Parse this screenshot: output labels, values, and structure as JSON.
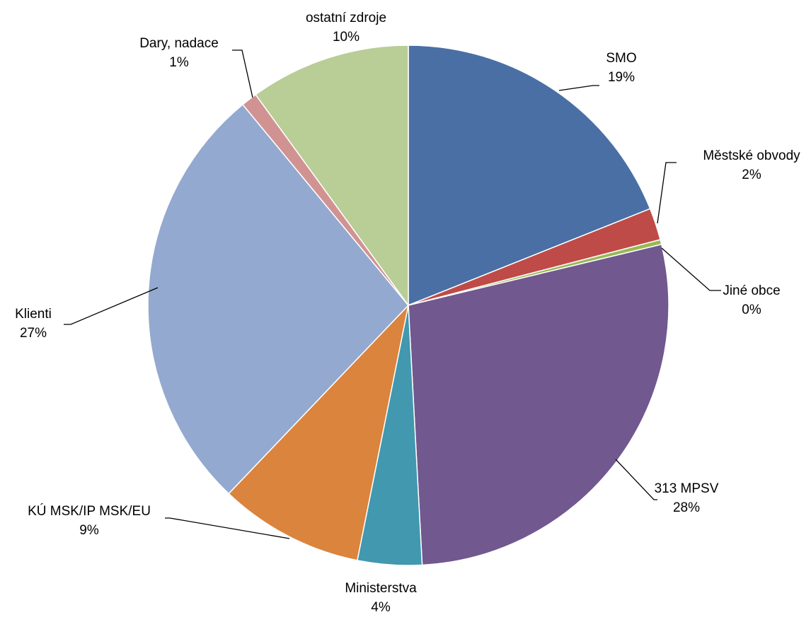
{
  "chart_data": {
    "type": "pie",
    "slices": [
      {
        "name": "SMO",
        "value": 19,
        "label": "19%",
        "color": "#4A6FA5"
      },
      {
        "name": "Městské obvody",
        "value": 2,
        "label": "2%",
        "color": "#BE4B48"
      },
      {
        "name": "Jiné obce",
        "value": 0.3,
        "label": "0%",
        "color": "#98B954"
      },
      {
        "name": "313 MPSV",
        "value": 28,
        "label": "28%",
        "color": "#71588F"
      },
      {
        "name": "Ministerstva",
        "value": 4,
        "label": "4%",
        "color": "#4198AF"
      },
      {
        "name": "KÚ MSK/IP MSK/EU",
        "value": 9,
        "label": "9%",
        "color": "#DB843D"
      },
      {
        "name": "Klienti",
        "value": 27,
        "label": "27%",
        "color": "#93A9CF"
      },
      {
        "name": "Dary, nadace",
        "value": 1,
        "label": "1%",
        "color": "#D19392"
      },
      {
        "name": "ostatní zdroje",
        "value": 10,
        "label": "10%",
        "color": "#B9CD96"
      }
    ]
  }
}
